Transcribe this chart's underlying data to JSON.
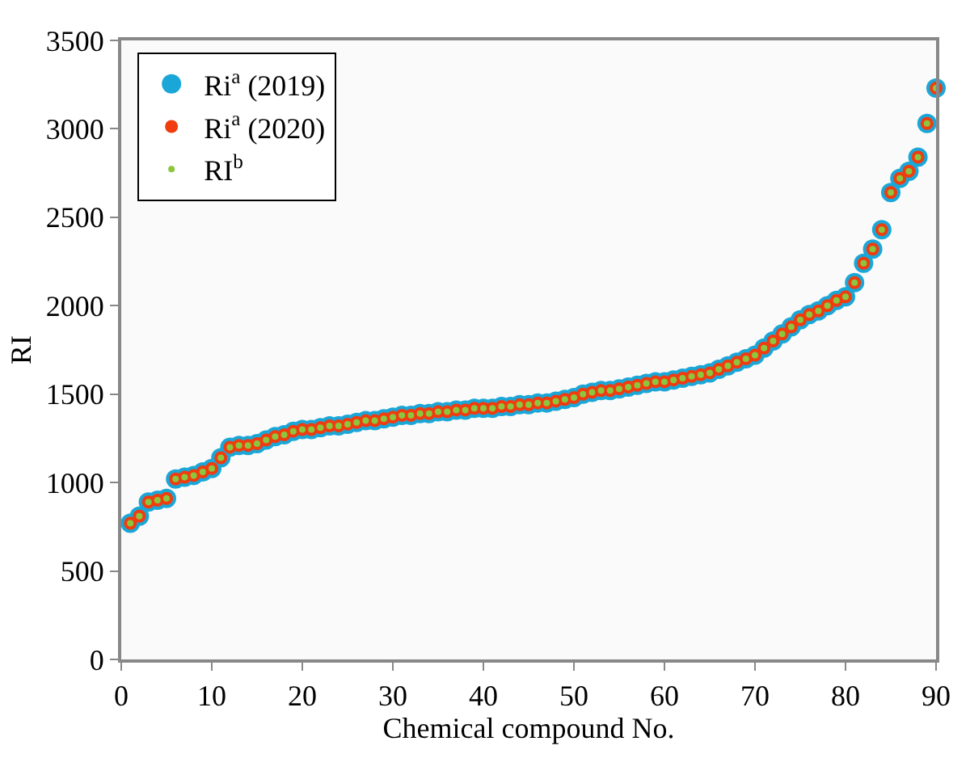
{
  "chart_data": {
    "type": "scatter",
    "xlabel": "Chemical compound No.",
    "ylabel": "RI",
    "x": [
      1,
      2,
      3,
      4,
      5,
      6,
      7,
      8,
      9,
      10,
      11,
      12,
      13,
      14,
      15,
      16,
      17,
      18,
      19,
      20,
      21,
      22,
      23,
      24,
      25,
      26,
      27,
      28,
      29,
      30,
      31,
      32,
      33,
      34,
      35,
      36,
      37,
      38,
      39,
      40,
      41,
      42,
      43,
      44,
      45,
      46,
      47,
      48,
      49,
      50,
      51,
      52,
      53,
      54,
      55,
      56,
      57,
      58,
      59,
      60,
      61,
      62,
      63,
      64,
      65,
      66,
      67,
      68,
      69,
      70,
      71,
      72,
      73,
      74,
      75,
      76,
      77,
      78,
      79,
      80,
      81,
      82,
      83,
      84,
      85,
      86,
      87,
      88,
      89,
      90
    ],
    "series": [
      {
        "name": "Ri$^{a}$ (2019)",
        "color": "#1aa7d8",
        "values": [
          770,
          810,
          890,
          900,
          910,
          1020,
          1030,
          1040,
          1060,
          1080,
          1140,
          1200,
          1210,
          1210,
          1220,
          1240,
          1260,
          1270,
          1290,
          1300,
          1300,
          1310,
          1320,
          1320,
          1330,
          1340,
          1350,
          1350,
          1360,
          1370,
          1380,
          1380,
          1390,
          1390,
          1400,
          1400,
          1410,
          1410,
          1420,
          1420,
          1420,
          1430,
          1430,
          1440,
          1440,
          1450,
          1450,
          1460,
          1470,
          1480,
          1500,
          1510,
          1520,
          1520,
          1530,
          1540,
          1550,
          1560,
          1570,
          1570,
          1580,
          1590,
          1600,
          1610,
          1620,
          1640,
          1660,
          1680,
          1700,
          1720,
          1760,
          1800,
          1840,
          1880,
          1920,
          1950,
          1970,
          2000,
          2030,
          2050,
          2130,
          2240,
          2320,
          2430,
          2640,
          2720,
          2760,
          2840,
          3030,
          3230
        ]
      },
      {
        "name": "Ri$^{a}$ (2020)",
        "color": "#f03c0f",
        "values": [
          770,
          810,
          890,
          900,
          910,
          1020,
          1030,
          1040,
          1060,
          1080,
          1140,
          1200,
          1210,
          1210,
          1220,
          1240,
          1260,
          1270,
          1290,
          1300,
          1300,
          1310,
          1320,
          1320,
          1330,
          1340,
          1350,
          1350,
          1360,
          1370,
          1380,
          1380,
          1390,
          1390,
          1400,
          1400,
          1410,
          1410,
          1420,
          1420,
          1420,
          1430,
          1430,
          1440,
          1440,
          1450,
          1450,
          1460,
          1470,
          1480,
          1500,
          1510,
          1520,
          1520,
          1530,
          1540,
          1550,
          1560,
          1570,
          1570,
          1580,
          1590,
          1600,
          1610,
          1620,
          1640,
          1660,
          1680,
          1700,
          1720,
          1760,
          1800,
          1840,
          1880,
          1920,
          1950,
          1970,
          2000,
          2030,
          2050,
          2130,
          2240,
          2320,
          2430,
          2640,
          2720,
          2760,
          2840,
          3030,
          3230
        ]
      },
      {
        "name": "RI$^{b}$",
        "color": "#8cc63f",
        "values": [
          770,
          810,
          890,
          900,
          910,
          1020,
          1030,
          1040,
          1060,
          1080,
          1140,
          1200,
          1210,
          1210,
          1220,
          1240,
          1260,
          1270,
          1290,
          1300,
          1300,
          1310,
          1320,
          1320,
          1330,
          1340,
          1350,
          1350,
          1360,
          1370,
          1380,
          1380,
          1390,
          1390,
          1400,
          1400,
          1410,
          1410,
          1420,
          1420,
          1420,
          1430,
          1430,
          1440,
          1440,
          1450,
          1450,
          1460,
          1470,
          1480,
          1500,
          1510,
          1520,
          1520,
          1530,
          1540,
          1550,
          1560,
          1570,
          1570,
          1580,
          1590,
          1600,
          1610,
          1620,
          1640,
          1660,
          1680,
          1700,
          1720,
          1760,
          1800,
          1840,
          1880,
          1920,
          1950,
          1970,
          2000,
          2030,
          2050,
          2130,
          2240,
          2320,
          2430,
          2640,
          2720,
          2760,
          2840,
          3030,
          3230
        ]
      }
    ],
    "xlim": [
      0,
      90
    ],
    "xticks": [
      0,
      10,
      20,
      30,
      40,
      50,
      60,
      70,
      80,
      90
    ],
    "ylim": [
      0,
      3500
    ],
    "yticks": [
      0,
      500,
      1000,
      1500,
      2000,
      2500,
      3000,
      3500
    ],
    "legend": "top left",
    "marker": "circle"
  }
}
